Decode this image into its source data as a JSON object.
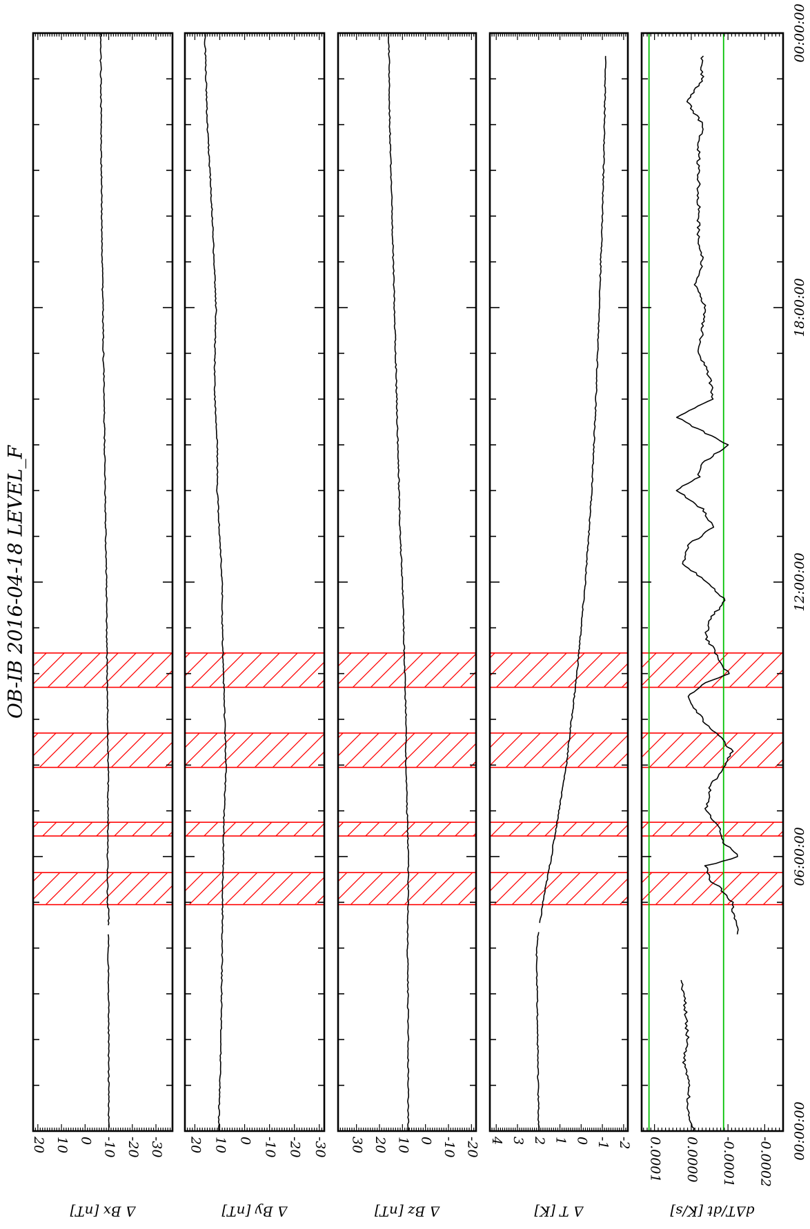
{
  "page": {
    "title": "OB-IB  2016-04-18 LEVEL_F"
  },
  "colors": {
    "trace": "#000000",
    "highlight": "#ff0000",
    "threshold": "#00c000"
  },
  "chart_data": [
    {
      "id": "bx",
      "type": "line",
      "ylabel": "Δ Bx [nT]",
      "ylim": [
        -37,
        22
      ],
      "yticks": [
        20,
        10,
        0,
        -10,
        -20,
        -30
      ],
      "yticklabels": [
        "20",
        "10",
        "0",
        "-10",
        "-20",
        "-30"
      ],
      "x_hours": [
        0,
        2,
        4,
        4.8,
        5,
        6,
        8,
        9.5,
        10,
        12,
        14,
        16,
        18,
        20,
        22,
        24
      ],
      "y": [
        -10,
        -10,
        -9.8,
        -10,
        -9.5,
        -9.5,
        -9.8,
        -9.5,
        -9.3,
        -9,
        -8.5,
        -8,
        -7.5,
        -7,
        -6.8,
        -6.5
      ],
      "gaps_hours": [
        [
          4.3,
          4.45
        ]
      ]
    },
    {
      "id": "by",
      "type": "line",
      "ylabel": "Δ By [nT]",
      "ylim": [
        -32,
        24
      ],
      "yticks": [
        20,
        10,
        0,
        -10,
        -20,
        -30
      ],
      "yticklabels": [
        "20",
        "10",
        "0",
        "-10",
        "-20",
        "-30"
      ],
      "x_hours": [
        0,
        2,
        4,
        5.5,
        6,
        7,
        8,
        9,
        10,
        11,
        12,
        13,
        14,
        15,
        16,
        17,
        18,
        20,
        22,
        24
      ],
      "y": [
        10.5,
        9.5,
        9,
        8.8,
        8.5,
        8.3,
        7.5,
        8,
        8.5,
        9,
        9,
        10,
        11,
        11,
        12,
        12,
        11.5,
        13,
        15,
        16
      ],
      "gaps_hours": []
    },
    {
      "id": "bz",
      "type": "line",
      "ylabel": "Δ Bz [nT]",
      "ylim": [
        -22,
        38
      ],
      "yticks": [
        30,
        20,
        10,
        0,
        -10,
        -20
      ],
      "yticklabels": [
        "30",
        "20",
        "10",
        "0",
        "-10",
        "-20"
      ],
      "x_hours": [
        0,
        2,
        4,
        5,
        6,
        7,
        8,
        9,
        10,
        11,
        12,
        13,
        14,
        15,
        16,
        18,
        20,
        22,
        24
      ],
      "y": [
        7.5,
        7.5,
        7.8,
        7.5,
        7.5,
        8,
        8.5,
        8.5,
        9,
        9.5,
        10,
        11,
        11.5,
        12,
        12.5,
        13.5,
        14.5,
        15.5,
        16
      ],
      "gaps_hours": []
    },
    {
      "id": "dt",
      "type": "line",
      "ylabel": "Δ T [K]",
      "ylim": [
        -2.2,
        4.3
      ],
      "yticks": [
        4,
        3,
        2,
        1,
        0,
        -1,
        -2
      ],
      "yticklabels": [
        "4",
        "3",
        "2",
        "1",
        "0",
        "-1",
        "-2"
      ],
      "x_hours": [
        0,
        2,
        4,
        4.5,
        5,
        6,
        7,
        8,
        9,
        10,
        11,
        12,
        13,
        14,
        16,
        18,
        20,
        22,
        23.5
      ],
      "y": [
        2,
        2.05,
        2.1,
        1.95,
        1.8,
        1.4,
        1.05,
        0.7,
        0.45,
        0.2,
        0,
        -0.2,
        -0.35,
        -0.5,
        -0.7,
        -0.85,
        -1.0,
        -1.1,
        -1.15
      ],
      "gaps_hours": [
        [
          4.35,
          4.5
        ]
      ]
    },
    {
      "id": "ddt",
      "type": "line",
      "ylabel": "dΔT/dt [K/s]",
      "ylim": [
        -0.00025,
        0.000135
      ],
      "yticks": [
        0.0001,
        0.0,
        -0.0001,
        -0.0002
      ],
      "yticklabels": [
        "0.0001",
        "0.0000",
        "-0.0001",
        "-0.0002"
      ],
      "thresholds": [
        0.000115,
        -8.8e-05
      ],
      "x_hours": [
        0,
        0.5,
        1,
        1.5,
        2,
        2.5,
        3,
        3.3,
        4.3,
        4.6,
        5,
        5.3,
        5.5,
        5.8,
        6,
        6.3,
        6.6,
        7,
        7.5,
        8,
        8.3,
        8.6,
        9,
        9.5,
        9.8,
        10,
        10.4,
        10.8,
        11.2,
        11.6,
        12,
        12.4,
        12.8,
        13.2,
        13.6,
        14,
        14.3,
        14.6,
        15,
        15.3,
        15.6,
        16,
        16.5,
        17,
        17.5,
        18,
        18.5,
        19,
        19.5,
        20,
        20.5,
        21,
        21.5,
        22,
        22.5,
        23,
        23.5
      ],
      "y": [
        -5e-06,
        1e-05,
        5e-06,
        2e-05,
        1e-05,
        1.5e-05,
        2e-05,
        3e-05,
        -0.000125,
        -0.00012,
        -0.00011,
        -8e-05,
        -5e-05,
        -4e-05,
        -0.00013,
        -9e-05,
        -8e-05,
        -4e-05,
        -5e-05,
        -9e-05,
        -0.00011,
        -8e-05,
        -3e-05,
        1e-05,
        -4e-05,
        -0.0001,
        -7e-05,
        -4e-05,
        -5e-05,
        -9.5e-05,
        -4e-05,
        2e-05,
        1e-05,
        -6e-05,
        -3e-05,
        4e-05,
        -2e-05,
        -3e-05,
        -0.0001,
        -3e-05,
        4e-05,
        -6e-05,
        -5e-05,
        -2e-05,
        -3e-05,
        -4e-05,
        -1e-05,
        -3e-05,
        -2e-05,
        -2e-05,
        -2e-05,
        -2e-05,
        -2e-05,
        -3e-05,
        1e-05,
        -3e-05,
        -3e-05
      ],
      "gaps_hours": [
        [
          3.3,
          4.25
        ]
      ]
    }
  ],
  "time_axis": {
    "xlim_hours": [
      0,
      24
    ],
    "major_ticks_hours": [
      0,
      6,
      12,
      18,
      24
    ],
    "major_labels": [
      "00:00:00",
      "06:00:00",
      "12:00:00",
      "18:00:00",
      "00:00:00"
    ],
    "minor_step_hours": 1,
    "highlight_bands_hours": [
      [
        4.95,
        5.65
      ],
      [
        6.45,
        6.75
      ],
      [
        7.95,
        8.7
      ],
      [
        9.7,
        10.45
      ]
    ]
  }
}
